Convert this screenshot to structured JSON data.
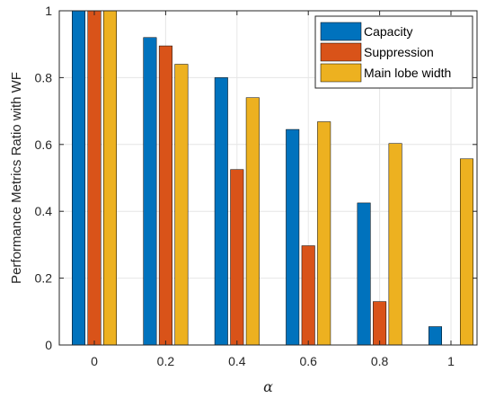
{
  "chart_data": {
    "type": "bar",
    "categories": [
      "0",
      "0.2",
      "0.4",
      "0.6",
      "0.8",
      "1"
    ],
    "series": [
      {
        "name": "Capacity",
        "color": "#0072BD",
        "values": [
          1.0,
          0.92,
          0.8,
          0.645,
          0.425,
          0.055
        ]
      },
      {
        "name": "Suppression",
        "color": "#D95319",
        "values": [
          1.0,
          0.895,
          0.525,
          0.297,
          0.13,
          0.0
        ]
      },
      {
        "name": "Main lobe width",
        "color": "#EDB120",
        "values": [
          1.0,
          0.84,
          0.74,
          0.668,
          0.603,
          0.557
        ]
      }
    ],
    "xlabel": "α",
    "ylabel": "Performance Metrics Ratio with WF",
    "ylim": [
      0,
      1
    ],
    "yticks": [
      "0",
      "0.2",
      "0.4",
      "0.6",
      "0.8",
      "1"
    ],
    "grid": true,
    "legend_position": "top-right"
  }
}
